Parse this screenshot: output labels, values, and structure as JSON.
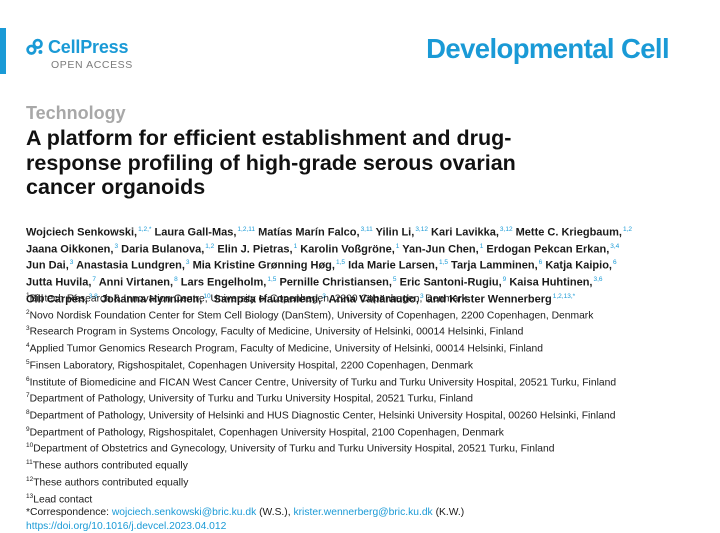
{
  "publisher": {
    "name": "CellPress",
    "tagline": "OPEN ACCESS"
  },
  "journal": "Developmental Cell",
  "section": "Technology",
  "title": "A platform for efficient establishment and drug-response profiling of high-grade serous ovarian cancer organoids",
  "authors": [
    {
      "name": "Wojciech Senkowski,",
      "sup": "1,2,*"
    },
    {
      "name": "Laura Gall-Mas,",
      "sup": "1,2,11"
    },
    {
      "name": "Matías Marín Falco,",
      "sup": "3,11"
    },
    {
      "name": "Yilin Li,",
      "sup": "3,12"
    },
    {
      "name": "Kari Lavikka,",
      "sup": "3,12"
    },
    {
      "name": "Mette C. Kriegbaum,",
      "sup": "1,2"
    },
    {
      "name": "Jaana Oikkonen,",
      "sup": "3"
    },
    {
      "name": "Daria Bulanova,",
      "sup": "1,2"
    },
    {
      "name": "Elin J. Pietras,",
      "sup": "1"
    },
    {
      "name": "Karolin Voßgröne,",
      "sup": "1"
    },
    {
      "name": "Yan-Jun Chen,",
      "sup": "1"
    },
    {
      "name": "Erdogan Pekcan Erkan,",
      "sup": "3,4"
    },
    {
      "name": "Jun Dai,",
      "sup": "3"
    },
    {
      "name": "Anastasia Lundgren,",
      "sup": "3"
    },
    {
      "name": "Mia Kristine Grønning Høg,",
      "sup": "1,5"
    },
    {
      "name": "Ida Marie Larsen,",
      "sup": "1,5"
    },
    {
      "name": "Tarja Lamminen,",
      "sup": "6"
    },
    {
      "name": "Katja Kaipio,",
      "sup": "6"
    },
    {
      "name": "Jutta Huvila,",
      "sup": "7"
    },
    {
      "name": "Anni Virtanen,",
      "sup": "8"
    },
    {
      "name": "Lars Engelholm,",
      "sup": "1,5"
    },
    {
      "name": "Pernille Christiansen,",
      "sup": "5"
    },
    {
      "name": "Eric Santoni-Rugiu,",
      "sup": "9"
    },
    {
      "name": "Kaisa Huhtinen,",
      "sup": "3,6"
    },
    {
      "name": "Olli Carpén,",
      "sup": "3,8"
    },
    {
      "name": "Johanna Hynninen,",
      "sup": "10"
    },
    {
      "name": "Sampsa Hautaniemi,",
      "sup": "3"
    },
    {
      "name": "Anna Vähärautio,",
      "sup": "3"
    },
    {
      "name": "and Krister Wennerberg",
      "sup": "1,2,13,*"
    }
  ],
  "author_lines": [
    [
      0,
      5
    ],
    [
      6,
      11
    ],
    [
      12,
      17
    ],
    [
      18,
      23
    ],
    [
      24,
      28
    ]
  ],
  "affiliations": [
    {
      "sup": "1",
      "text": "Biotech Research & Innovation Centre, University of Copenhagen, 2200 Copenhagen, Denmark"
    },
    {
      "sup": "2",
      "text": "Novo Nordisk Foundation Center for Stem Cell Biology (DanStem), University of Copenhagen, 2200 Copenhagen, Denmark"
    },
    {
      "sup": "3",
      "text": "Research Program in Systems Oncology, Faculty of Medicine, University of Helsinki, 00014 Helsinki, Finland"
    },
    {
      "sup": "4",
      "text": "Applied Tumor Genomics Research Program, Faculty of Medicine, University of Helsinki, 00014 Helsinki, Finland"
    },
    {
      "sup": "5",
      "text": "Finsen Laboratory, Rigshospitalet, Copenhagen University Hospital, 2200 Copenhagen, Denmark"
    },
    {
      "sup": "6",
      "text": "Institute of Biomedicine and FICAN West Cancer Centre, University of Turku and Turku University Hospital, 20521 Turku, Finland"
    },
    {
      "sup": "7",
      "text": "Department of Pathology, University of Turku and Turku University Hospital, 20521 Turku, Finland"
    },
    {
      "sup": "8",
      "text": "Department of Pathology, University of Helsinki and HUS Diagnostic Center, Helsinki University Hospital, 00260 Helsinki, Finland"
    },
    {
      "sup": "9",
      "text": "Department of Pathology, Rigshospitalet, Copenhagen University Hospital, 2100 Copenhagen, Denmark"
    },
    {
      "sup": "10",
      "text": "Department of Obstetrics and Gynecology, University of Turku and Turku University Hospital, 20521 Turku, Finland"
    },
    {
      "sup": "11",
      "text": "These authors contributed equally"
    },
    {
      "sup": "12",
      "text": "These authors contributed equally"
    },
    {
      "sup": "13",
      "text": "Lead contact"
    }
  ],
  "correspondence": {
    "label": "*Correspondence:",
    "email1": "wojciech.senkowski@bric.ku.dk",
    "initials1": "(W.S.),",
    "email2": "krister.wennerberg@bric.ku.dk",
    "initials2": "(K.W.)"
  },
  "doi": "https://doi.org/10.1016/j.devcel.2023.04.012",
  "colors": {
    "accent": "#1a9ad6",
    "section_grey": "#a8a8a8"
  }
}
